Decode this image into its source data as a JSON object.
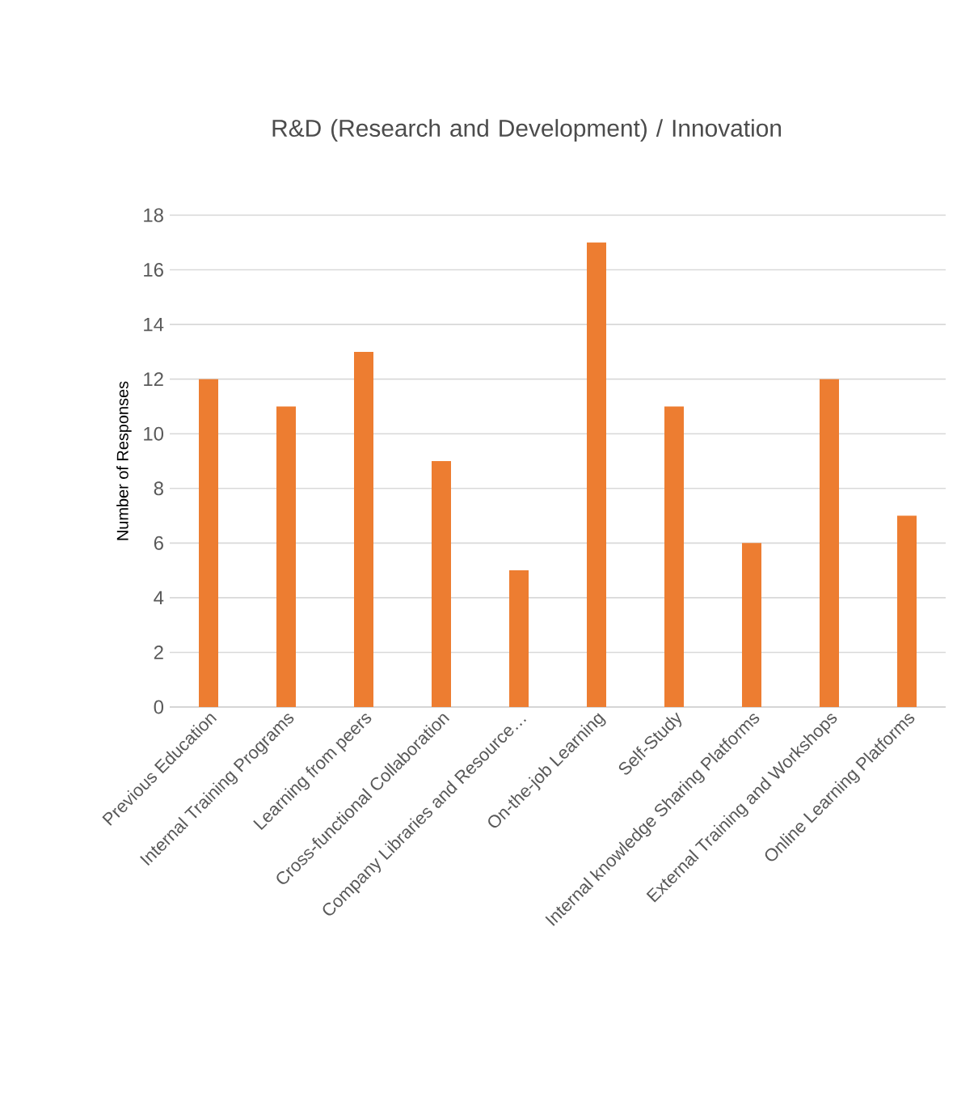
{
  "chart_data": {
    "type": "bar",
    "title": "R&D (Research and Development) / Innovation",
    "ylabel": "Number of Responses",
    "categories": [
      "Previous Education",
      "Internal Training Programs",
      "Learning from peers",
      "Cross-functional Collaboration",
      "Company Libraries and Resource…",
      "On-the-job Learning",
      "Self-Study",
      "Internal knowledge Sharing Platforms",
      "External Training and Workshops",
      "Online Learning Platforms"
    ],
    "values": [
      12,
      11,
      13,
      9,
      5,
      17,
      11,
      6,
      12,
      7
    ],
    "color": "#ed7d31",
    "ylim": [
      0,
      18
    ],
    "yticks": [
      0,
      2,
      4,
      6,
      8,
      10,
      12,
      14,
      16,
      18
    ],
    "grid": "y"
  }
}
